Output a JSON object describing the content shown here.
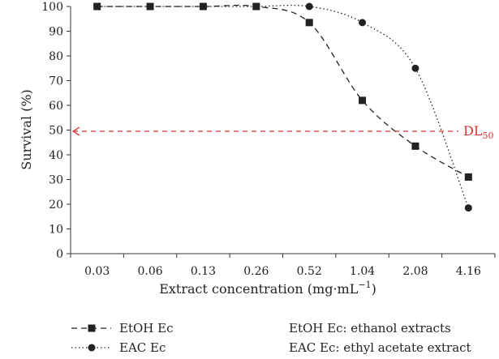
{
  "chart_data": {
    "type": "line",
    "title": "",
    "xlabel": "Extract concentration (mg·mL",
    "xlabel_sup": "−1",
    "xlabel_end": ")",
    "ylabel": "Survival (%)",
    "categories": [
      "0.03",
      "0.06",
      "0.13",
      "0.26",
      "0.52",
      "1.04",
      "2.08",
      "4.16"
    ],
    "ylim": [
      0,
      100
    ],
    "yticks": [
      0,
      10,
      20,
      30,
      40,
      50,
      60,
      70,
      80,
      90,
      100
    ],
    "grid": false,
    "series": [
      {
        "name": "EtOH Ec",
        "marker": "square",
        "line": "dashed",
        "color": "#222222",
        "values": [
          100,
          100,
          100,
          100,
          93.5,
          62,
          43.5,
          31
        ]
      },
      {
        "name": "EAC Ec",
        "marker": "circle",
        "line": "dotted",
        "color": "#222222",
        "values": [
          100,
          100,
          100,
          100,
          100,
          93.5,
          75,
          18.5
        ]
      }
    ],
    "reference_line": {
      "label": "DL",
      "label_sub": "50",
      "value": 49.5,
      "color": "#d9322f",
      "style": "dashed"
    },
    "legend": {
      "placement": "bottom",
      "notes": [
        "EtOH Ec: ethanol extracts",
        "EAC Ec: ethyl acetate extract"
      ]
    }
  }
}
